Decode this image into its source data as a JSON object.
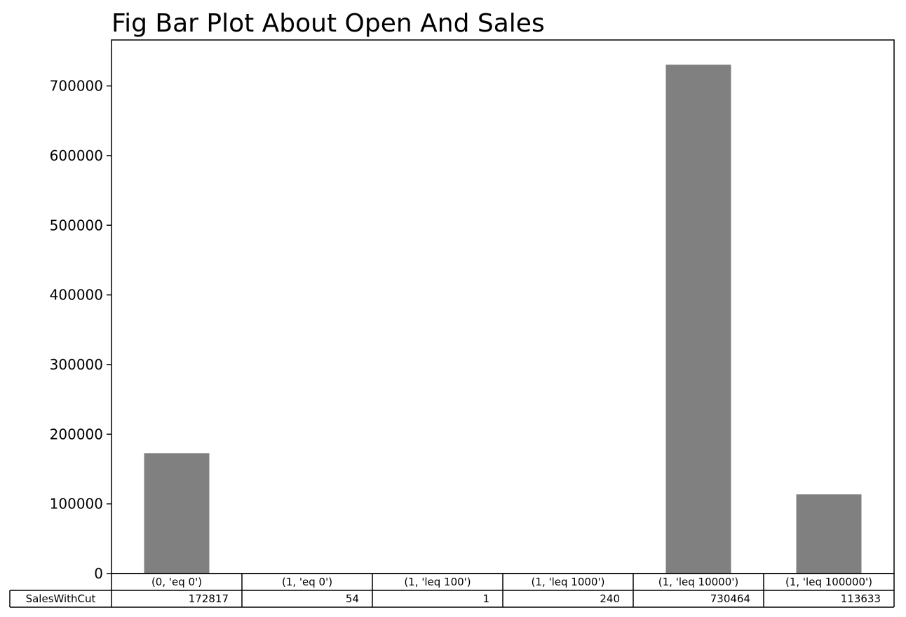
{
  "chart_data": {
    "type": "bar",
    "title": "Fig Bar Plot About Open And Sales",
    "xlabel": "",
    "ylabel": "",
    "categories": [
      "(0, 'eq 0')",
      "(1, 'eq 0')",
      "(1, 'leq 100')",
      "(1, 'leq 1000')",
      "(1, 'leq 10000')",
      "(1, 'leq 100000')"
    ],
    "series": [
      {
        "name": "SalesWithCut",
        "values": [
          172817,
          54,
          1,
          240,
          730464,
          113633
        ]
      }
    ],
    "ylim": [
      0,
      766000
    ],
    "yticks": [
      0,
      100000,
      200000,
      300000,
      400000,
      500000,
      600000,
      700000
    ],
    "bar_color": "#808080",
    "grid": false,
    "legend": "none",
    "table": {
      "row_label": "SalesWithCut",
      "values": [
        "172817",
        "54",
        "1",
        "240",
        "730464",
        "113633"
      ]
    }
  }
}
